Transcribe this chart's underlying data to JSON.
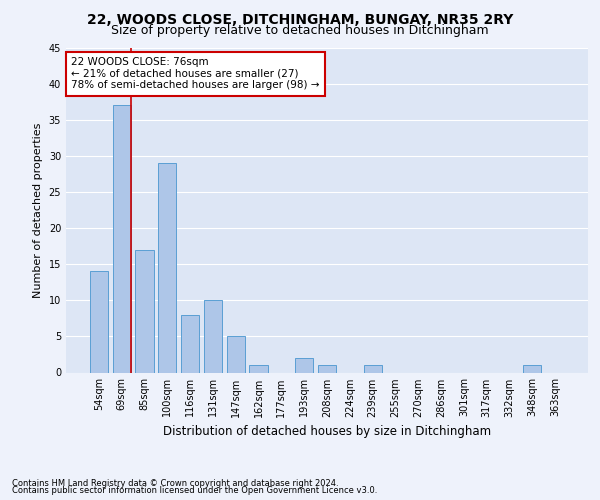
{
  "title": "22, WOODS CLOSE, DITCHINGHAM, BUNGAY, NR35 2RY",
  "subtitle": "Size of property relative to detached houses in Ditchingham",
  "xlabel": "Distribution of detached houses by size in Ditchingham",
  "ylabel": "Number of detached properties",
  "footnote1": "Contains HM Land Registry data © Crown copyright and database right 2024.",
  "footnote2": "Contains public sector information licensed under the Open Government Licence v3.0.",
  "annotation_line1": "22 WOODS CLOSE: 76sqm",
  "annotation_line2": "← 21% of detached houses are smaller (27)",
  "annotation_line3": "78% of semi-detached houses are larger (98) →",
  "bar_categories": [
    "54sqm",
    "69sqm",
    "85sqm",
    "100sqm",
    "116sqm",
    "131sqm",
    "147sqm",
    "162sqm",
    "177sqm",
    "193sqm",
    "208sqm",
    "224sqm",
    "239sqm",
    "255sqm",
    "270sqm",
    "286sqm",
    "301sqm",
    "317sqm",
    "332sqm",
    "348sqm",
    "363sqm"
  ],
  "bar_values": [
    14,
    37,
    17,
    29,
    8,
    10,
    5,
    1,
    0,
    2,
    1,
    0,
    1,
    0,
    0,
    0,
    0,
    0,
    0,
    1,
    0
  ],
  "bar_color": "#aec6e8",
  "bar_edge_color": "#5a9fd4",
  "vline_color": "#cc0000",
  "vline_x": 1.4,
  "ylim": [
    0,
    45
  ],
  "yticks": [
    0,
    5,
    10,
    15,
    20,
    25,
    30,
    35,
    40,
    45
  ],
  "annotation_box_color": "#cc0000",
  "bg_color": "#eef2fb",
  "plot_bg_color": "#dde6f5",
  "grid_color": "#ffffff",
  "title_fontsize": 10,
  "subtitle_fontsize": 9,
  "ylabel_fontsize": 8,
  "xlabel_fontsize": 8.5,
  "tick_fontsize": 7,
  "annotation_fontsize": 7.5,
  "footnote_fontsize": 6
}
